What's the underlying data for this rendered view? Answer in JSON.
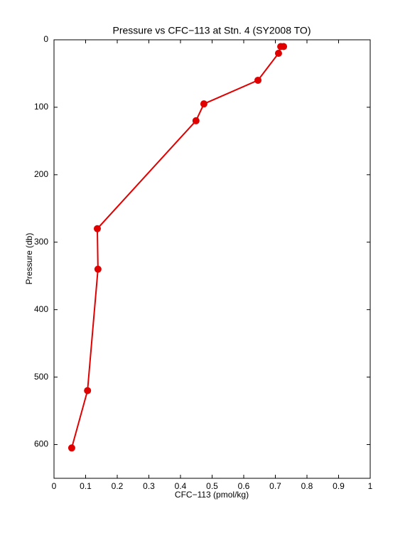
{
  "chart_data": {
    "type": "line",
    "title": "Pressure vs CFC−113 at Stn. 4 (SY2008 TO)",
    "x_label": "CFC−113 (pmol/kg)",
    "y_label": "Pressure (db)",
    "x": [
      0.726,
      0.717,
      0.71,
      0.645,
      0.474,
      0.449,
      0.137,
      0.139,
      0.106,
      0.056
    ],
    "values": [
      10,
      10,
      20,
      60,
      95,
      120,
      280,
      340,
      520,
      605
    ],
    "color": "#e00000",
    "markers": true,
    "xlim": [
      0,
      1
    ],
    "xticks": [
      0,
      0.1,
      0.2,
      0.3,
      0.4,
      0.5,
      0.6,
      0.7,
      0.8,
      0.9,
      1
    ],
    "ylim": [
      0,
      650
    ],
    "yticks": [
      0,
      100,
      200,
      300,
      400,
      500,
      600
    ],
    "y_reversed": true,
    "grid": false
  }
}
